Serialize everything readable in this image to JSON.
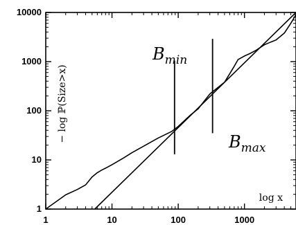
{
  "chart_data": {
    "type": "line",
    "xscale": "log",
    "yscale": "log",
    "xlim": [
      1,
      6000
    ],
    "ylim": [
      1,
      10000
    ],
    "xticks": [
      "1",
      "10",
      "100",
      "1000"
    ],
    "yticks": [
      "1",
      "10",
      "100",
      "1000",
      "10000"
    ],
    "xlabel": "log x",
    "ylabel": "− log ℙ(Size>x)",
    "grid": false,
    "series": [
      {
        "kind": "empirical",
        "x": [
          1,
          2,
          3,
          4,
          5,
          6,
          7,
          8,
          10,
          15,
          20,
          30,
          50,
          80,
          100,
          150,
          200,
          300,
          500,
          700,
          800,
          1000,
          1200,
          1500,
          2000,
          2500,
          3000,
          4000,
          5000,
          6000
        ],
        "y": [
          1,
          1.95,
          2.5,
          3.1,
          4.5,
          5.5,
          6.2,
          6.8,
          8,
          11,
          14,
          19,
          28,
          38,
          48,
          80,
          110,
          220,
          380,
          800,
          1100,
          1300,
          1450,
          1700,
          2200,
          2500,
          2750,
          3800,
          6000,
          9000
        ]
      },
      {
        "kind": "fit",
        "x": [
          5.5,
          6000
        ],
        "y": [
          1,
          10000
        ]
      }
    ],
    "annotations": [
      {
        "label_main": "B",
        "label_sub": "min",
        "x": 88,
        "y_range": [
          13,
          1050
        ]
      },
      {
        "label_main": "B",
        "label_sub": "max",
        "x": 330,
        "y_range": [
          35,
          2900
        ]
      }
    ]
  }
}
